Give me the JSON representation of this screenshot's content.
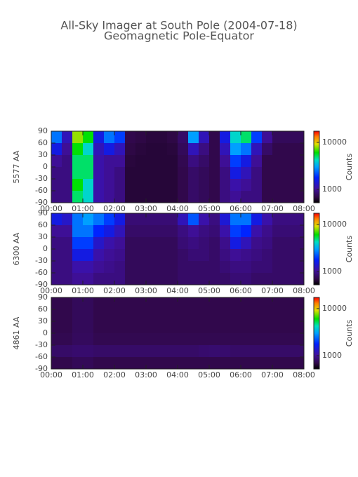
{
  "chart_data": [
    {
      "type": "heatmap",
      "title": "All-Sky Imager at South Pole (2004-07-18)",
      "subtitle": "Geomagnetic Pole-Equator",
      "ylabel": "5577 AA",
      "xlim": [
        0,
        8
      ],
      "xticks": [
        {
          "value": 0,
          "label": "00:00"
        },
        {
          "value": 1,
          "label": "01:00"
        },
        {
          "value": 2,
          "label": "02:00"
        },
        {
          "value": 3,
          "label": "03:00"
        },
        {
          "value": 4,
          "label": "04:00"
        },
        {
          "value": 5,
          "label": "05:00"
        },
        {
          "value": 6,
          "label": "06:00"
        },
        {
          "value": 7,
          "label": "07:00"
        },
        {
          "value": 8,
          "label": "08:00"
        }
      ],
      "ylim": [
        -90,
        90
      ],
      "yticks": [
        -90,
        -60,
        -30,
        0,
        30,
        60,
        90
      ],
      "log": true,
      "clim": [
        520,
        17300
      ],
      "cticks": [
        1000,
        10000
      ],
      "clabel": "Counts",
      "z": [
        [
          2500,
          1500,
          1000,
          900,
          900,
          900
        ],
        [
          1200,
          1000,
          900,
          900,
          900,
          900
        ],
        [
          8000,
          6000,
          5000,
          5000,
          6000,
          5000
        ],
        [
          6000,
          4000,
          5000,
          5000,
          4000,
          4000
        ],
        [
          1500,
          1200,
          1100,
          1100,
          1100,
          1100
        ],
        [
          2500,
          1500,
          1000,
          1000,
          1000,
          1000
        ],
        [
          2000,
          1200,
          1000,
          900,
          900,
          900
        ],
        [
          700,
          680,
          660,
          650,
          650,
          650
        ],
        [
          680,
          660,
          650,
          650,
          650,
          650
        ],
        [
          660,
          650,
          650,
          650,
          650,
          650
        ],
        [
          660,
          650,
          650,
          650,
          650,
          650
        ],
        [
          680,
          660,
          650,
          650,
          650,
          650
        ],
        [
          800,
          750,
          720,
          700,
          700,
          700
        ],
        [
          3000,
          1200,
          900,
          800,
          800,
          800
        ],
        [
          1200,
          900,
          800,
          750,
          750,
          750
        ],
        [
          700,
          700,
          700,
          700,
          700,
          700
        ],
        [
          1500,
          1200,
          1000,
          900,
          900,
          900
        ],
        [
          4000,
          3000,
          2000,
          1500,
          1100,
          1000
        ],
        [
          5000,
          2500,
          1500,
          1200,
          1000,
          900
        ],
        [
          2000,
          1200,
          1000,
          900,
          900,
          900
        ],
        [
          1000,
          800,
          700,
          700,
          700,
          700
        ],
        [
          750,
          700,
          700,
          700,
          700,
          700
        ],
        [
          750,
          700,
          700,
          700,
          700,
          700
        ],
        [
          750,
          700,
          700,
          700,
          700,
          700
        ]
      ]
    },
    {
      "type": "heatmap",
      "ylabel": "6300 AA",
      "xlim": [
        0,
        8
      ],
      "xticks": [
        {
          "value": 0,
          "label": "00:00"
        },
        {
          "value": 1,
          "label": "01:00"
        },
        {
          "value": 2,
          "label": "02:00"
        },
        {
          "value": 3,
          "label": "03:00"
        },
        {
          "value": 4,
          "label": "04:00"
        },
        {
          "value": 5,
          "label": "05:00"
        },
        {
          "value": 6,
          "label": "06:00"
        },
        {
          "value": 7,
          "label": "07:00"
        },
        {
          "value": 8,
          "label": "08:00"
        }
      ],
      "ylim": [
        -90,
        90
      ],
      "yticks": [
        -90,
        -60,
        -30,
        0,
        30,
        60,
        90
      ],
      "log": true,
      "clim": [
        520,
        17300
      ],
      "cticks": [
        1000,
        10000
      ],
      "clabel": "Counts",
      "z": [
        [
          1500,
          1000,
          900,
          900,
          900,
          900
        ],
        [
          1300,
          1000,
          900,
          900,
          900,
          900
        ],
        [
          2500,
          2500,
          2000,
          1500,
          1100,
          1000
        ],
        [
          3000,
          2500,
          2000,
          1500,
          1100,
          1000
        ],
        [
          2500,
          1800,
          1300,
          1100,
          1000,
          900
        ],
        [
          2000,
          1500,
          1100,
          1000,
          950,
          900
        ],
        [
          1500,
          1200,
          1000,
          950,
          900,
          900
        ],
        [
          850,
          800,
          750,
          750,
          750,
          750
        ],
        [
          850,
          800,
          750,
          750,
          750,
          750
        ],
        [
          850,
          800,
          750,
          750,
          750,
          750
        ],
        [
          850,
          800,
          750,
          750,
          750,
          750
        ],
        [
          850,
          800,
          750,
          750,
          750,
          750
        ],
        [
          1200,
          900,
          850,
          800,
          800,
          800
        ],
        [
          2200,
          1000,
          900,
          850,
          800,
          800
        ],
        [
          1100,
          900,
          850,
          850,
          800,
          800
        ],
        [
          900,
          850,
          800,
          800,
          800,
          800
        ],
        [
          1400,
          1100,
          950,
          900,
          850,
          800
        ],
        [
          2500,
          2000,
          1500,
          1000,
          900,
          850
        ],
        [
          2500,
          1800,
          1200,
          950,
          900,
          850
        ],
        [
          1500,
          1100,
          950,
          900,
          850,
          800
        ],
        [
          1100,
          950,
          900,
          850,
          850,
          800
        ],
        [
          900,
          850,
          800,
          800,
          800,
          800
        ],
        [
          900,
          850,
          800,
          800,
          800,
          800
        ],
        [
          900,
          850,
          800,
          800,
          800,
          800
        ]
      ]
    },
    {
      "type": "heatmap",
      "ylabel": "4861 AA",
      "xlim": [
        0,
        8
      ],
      "xticks": [
        {
          "value": 0,
          "label": "00:00"
        },
        {
          "value": 1,
          "label": "01:00"
        },
        {
          "value": 2,
          "label": "02:00"
        },
        {
          "value": 3,
          "label": "03:00"
        },
        {
          "value": 4,
          "label": "04:00"
        },
        {
          "value": 5,
          "label": "05:00"
        },
        {
          "value": 6,
          "label": "06:00"
        },
        {
          "value": 7,
          "label": "07:00"
        },
        {
          "value": 8,
          "label": "08:00"
        }
      ],
      "ylim": [
        -90,
        90
      ],
      "yticks": [
        -90,
        -60,
        -30,
        0,
        30,
        60,
        90
      ],
      "log": true,
      "clim": [
        520,
        17300
      ],
      "cticks": [
        1000,
        10000
      ],
      "clabel": "Counts",
      "z": [
        [
          700,
          700,
          700,
          720,
          800,
          700
        ],
        [
          700,
          700,
          700,
          720,
          800,
          700
        ],
        [
          750,
          750,
          750,
          760,
          820,
          740
        ],
        [
          750,
          750,
          750,
          760,
          820,
          740
        ],
        [
          700,
          700,
          700,
          720,
          800,
          700
        ],
        [
          700,
          700,
          700,
          720,
          800,
          700
        ],
        [
          700,
          700,
          700,
          720,
          800,
          700
        ],
        [
          700,
          700,
          700,
          720,
          800,
          700
        ],
        [
          700,
          700,
          700,
          720,
          800,
          700
        ],
        [
          700,
          700,
          700,
          720,
          800,
          700
        ],
        [
          700,
          700,
          700,
          720,
          800,
          700
        ],
        [
          700,
          700,
          700,
          720,
          800,
          700
        ],
        [
          700,
          700,
          700,
          720,
          800,
          700
        ],
        [
          700,
          700,
          700,
          720,
          800,
          700
        ],
        [
          700,
          700,
          700,
          720,
          820,
          700
        ],
        [
          700,
          700,
          700,
          720,
          830,
          700
        ],
        [
          700,
          700,
          700,
          720,
          820,
          700
        ],
        [
          700,
          700,
          700,
          720,
          800,
          700
        ],
        [
          700,
          700,
          700,
          720,
          800,
          700
        ],
        [
          700,
          700,
          700,
          720,
          800,
          700
        ],
        [
          700,
          700,
          700,
          720,
          800,
          700
        ],
        [
          700,
          700,
          700,
          720,
          800,
          700
        ],
        [
          700,
          700,
          700,
          720,
          800,
          700
        ],
        [
          700,
          700,
          700,
          720,
          800,
          700
        ]
      ]
    }
  ]
}
